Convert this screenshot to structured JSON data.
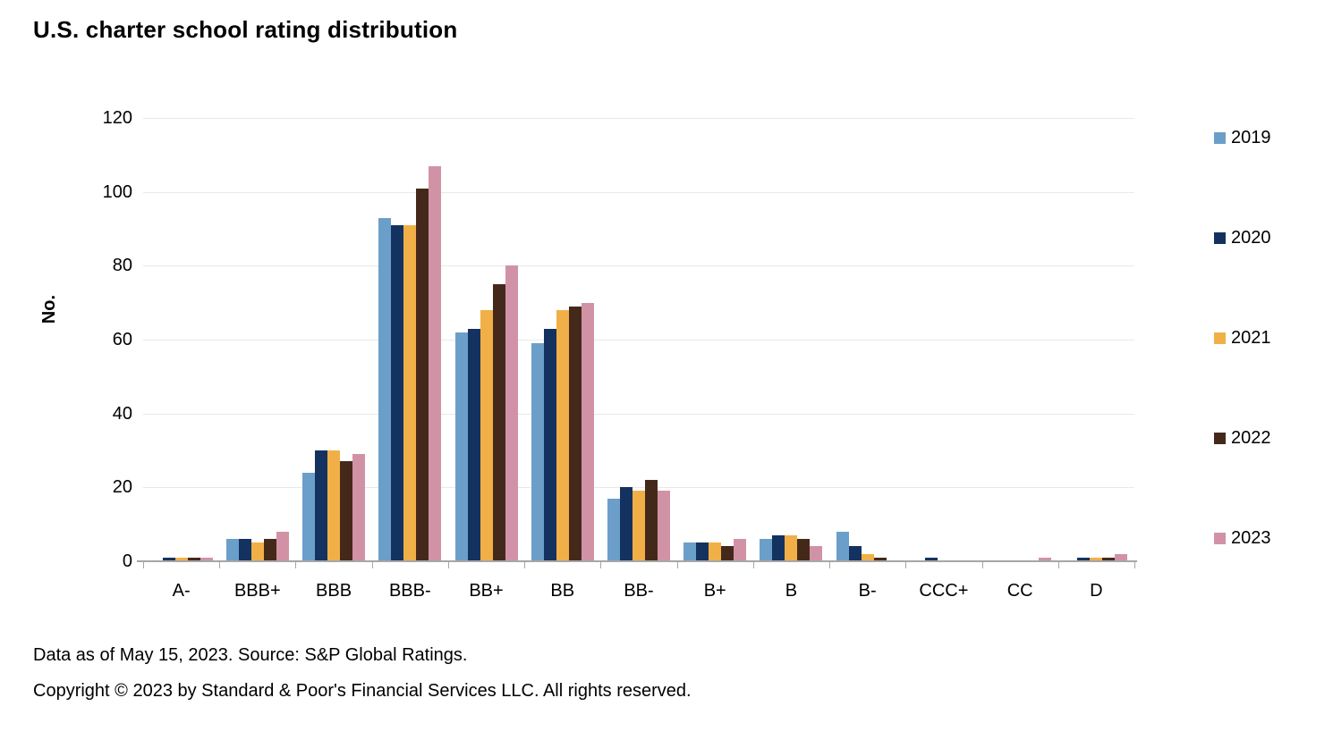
{
  "title": "U.S. charter school rating distribution",
  "footer": {
    "line1": "Data as of May 15, 2023. Source: S&P Global Ratings.",
    "line2": "Copyright © 2023 by Standard & Poor's Financial Services LLC. All rights reserved."
  },
  "chart_data": {
    "type": "bar",
    "title": "U.S. charter school rating distribution",
    "xlabel": "",
    "ylabel": "No.",
    "ylim": [
      0,
      120
    ],
    "yticks": [
      0,
      20,
      40,
      60,
      80,
      100,
      120
    ],
    "grid": "horizontal",
    "legend_position": "right",
    "categories": [
      "A-",
      "BBB+",
      "BBB",
      "BBB-",
      "BB+",
      "BB",
      "BB-",
      "B+",
      "B",
      "B-",
      "CCC+",
      "CC",
      "D"
    ],
    "series": [
      {
        "name": "2019",
        "color": "#6b9fca",
        "values": [
          0,
          6,
          24,
          93,
          62,
          59,
          17,
          5,
          6,
          8,
          0,
          0,
          0
        ]
      },
      {
        "name": "2020",
        "color": "#14325f",
        "values": [
          1,
          6,
          30,
          91,
          63,
          63,
          20,
          5,
          7,
          4,
          1,
          0,
          1
        ]
      },
      {
        "name": "2021",
        "color": "#f1b047",
        "values": [
          1,
          5,
          30,
          91,
          68,
          68,
          19,
          5,
          7,
          2,
          0,
          0,
          1
        ]
      },
      {
        "name": "2022",
        "color": "#44291b",
        "values": [
          1,
          6,
          27,
          101,
          75,
          69,
          22,
          4,
          6,
          1,
          0,
          0,
          1
        ]
      },
      {
        "name": "2023",
        "color": "#d292a6",
        "values": [
          1,
          8,
          29,
          107,
          80,
          70,
          19,
          6,
          4,
          0,
          0,
          1,
          2
        ]
      }
    ]
  }
}
